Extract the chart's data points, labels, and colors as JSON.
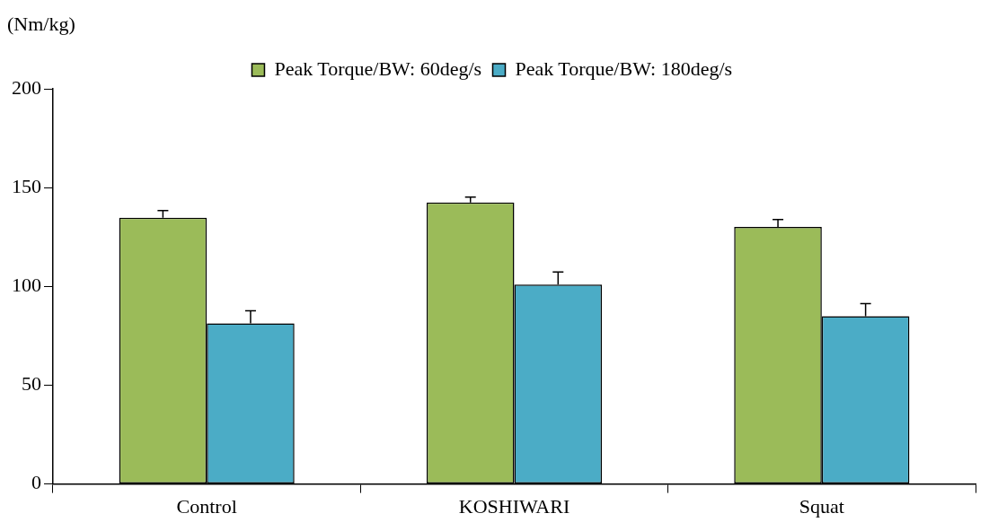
{
  "chart_data": {
    "type": "bar",
    "ylabel": "(Nm/kg)",
    "categories": [
      "Control",
      "KOSHIWARI",
      "Squat"
    ],
    "series": [
      {
        "name": "Peak Torque/BW: 60deg/s",
        "color": "#9bbb59",
        "values": [
          134.7,
          142.5,
          130.1
        ],
        "errors": [
          [
            134.7,
            138.4
          ],
          [
            142.5,
            145.2
          ],
          [
            130.1,
            133.8
          ]
        ]
      },
      {
        "name": "Peak Torque/BW: 180deg/s",
        "color": "#4bacc6",
        "values": [
          81.3,
          100.9,
          84.9
        ],
        "errors": [
          [
            81.3,
            87.7
          ],
          [
            100.9,
            107.3
          ],
          [
            84.9,
            91.3
          ]
        ]
      }
    ],
    "ylim": [
      0,
      200
    ],
    "yticks": [
      0,
      50,
      100,
      150,
      200
    ],
    "grid": false,
    "legend": "top"
  }
}
